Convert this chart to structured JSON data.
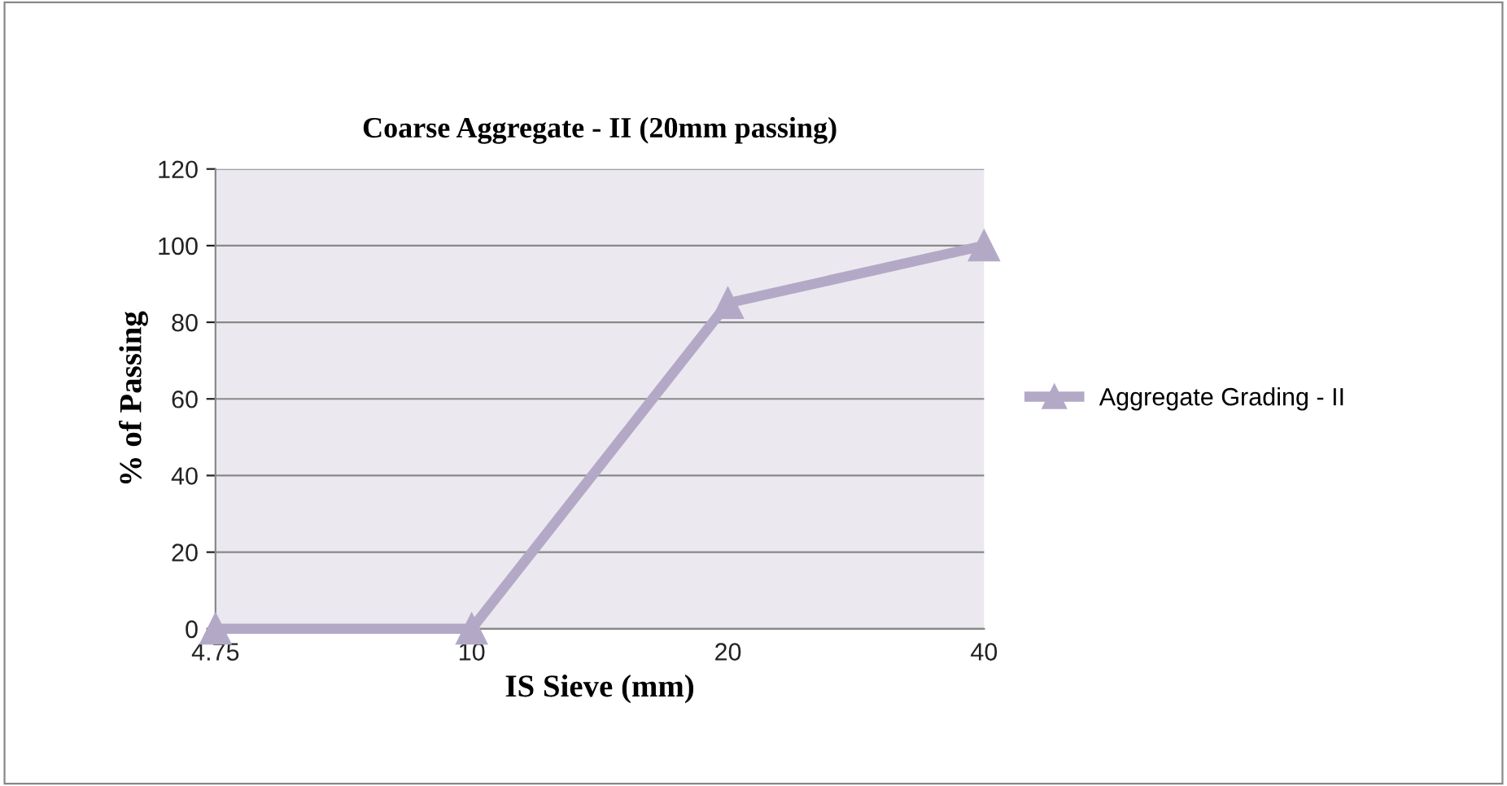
{
  "chart_data": {
    "type": "line",
    "title": "Coarse Aggregate - II (20mm passing)",
    "xlabel": "IS Sieve (mm)",
    "ylabel": "% of Passing",
    "categories": [
      "4.75",
      "10",
      "20",
      "40"
    ],
    "series": [
      {
        "name": "Aggregate Grading - II",
        "color": "#b3a9c7",
        "values": [
          0,
          0,
          85,
          100
        ]
      }
    ],
    "ylim": [
      0,
      120
    ],
    "yticks": [
      0,
      20,
      40,
      60,
      80,
      100,
      120
    ],
    "grid": "y",
    "legend": "right",
    "marker": "triangle",
    "line_style": "solid"
  }
}
